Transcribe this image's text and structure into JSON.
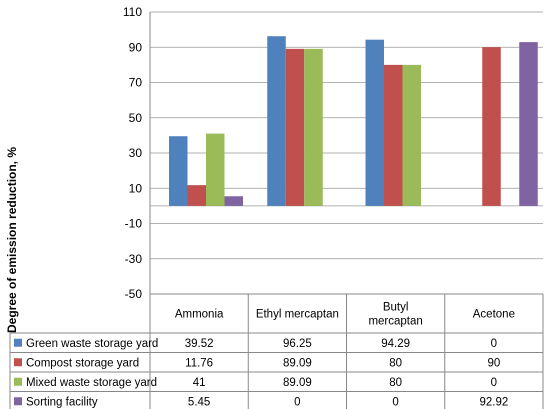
{
  "chart_data": {
    "type": "bar",
    "ylabel": "Degree of emission reduction, %",
    "ylim": [
      -50,
      110
    ],
    "yticks": [
      110,
      90,
      70,
      50,
      30,
      10,
      -10,
      -30,
      -50
    ],
    "categories": [
      [
        "Ammonia"
      ],
      [
        "Ethyl mercaptan"
      ],
      [
        "Butyl",
        "mercaptan"
      ],
      [
        "Acetone"
      ]
    ],
    "series": [
      {
        "name": "Green waste storage yard",
        "color": "#4F81BD",
        "values": [
          39.52,
          96.25,
          94.29,
          0
        ],
        "labels": [
          "39.52",
          "96.25",
          "94.29",
          "0"
        ]
      },
      {
        "name": "Compost storage yard",
        "color": "#C0504D",
        "values": [
          11.76,
          89.09,
          80,
          90
        ],
        "labels": [
          "11.76",
          "89.09",
          "80",
          "90"
        ]
      },
      {
        "name": "Mixed waste storage yard",
        "color": "#9BBB59",
        "values": [
          41,
          89.09,
          80,
          0
        ],
        "labels": [
          "41",
          "89.09",
          "80",
          "0"
        ]
      },
      {
        "name": "Sorting facility",
        "color": "#8064A2",
        "values": [
          5.45,
          0,
          0,
          92.92
        ],
        "labels": [
          "5.45",
          "0",
          "0",
          "92.92"
        ]
      }
    ],
    "grid": true,
    "legend": "data-table"
  }
}
